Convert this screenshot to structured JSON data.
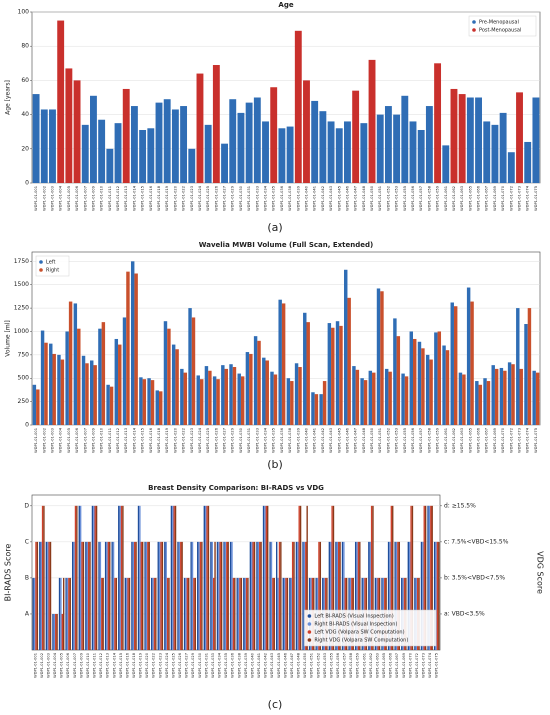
{
  "chart_data": [
    {
      "type": "bar",
      "title": "Age",
      "label": "(a)",
      "ylabel": "Age [years]",
      "categories": [
        "WDP1-01-001",
        "WDP1-01-002",
        "WDP1-01-003",
        "WDP1-01-004",
        "WDP1-01-005",
        "WDP1-01-006",
        "WDP1-01-007",
        "WDP1-01-009",
        "WDP1-01-010",
        "WDP1-01-011",
        "WDP1-01-012",
        "WDP1-01-013",
        "WDP1-01-014",
        "WDP1-01-015",
        "WDP1-01-016",
        "WDP1-01-018",
        "WDP1-01-019",
        "WDP1-01-020",
        "WDP1-01-022",
        "WDP1-01-023",
        "WDP1-01-024",
        "WDP1-01-025",
        "WDP1-01-026",
        "WDP1-01-027",
        "WDP1-01-029",
        "WDP1-01-030",
        "WDP1-01-031",
        "WDP1-01-033",
        "WDP1-01-034",
        "WDP1-01-035",
        "WDP1-01-036",
        "WDP1-01-038",
        "WDP1-01-039",
        "WDP1-01-040",
        "WDP1-01-041",
        "WDP1-01-042",
        "WDP1-01-043",
        "WDP1-01-045",
        "WDP1-01-046",
        "WDP1-01-047",
        "WDP1-01-048",
        "WDP1-01-050",
        "WDP1-01-051",
        "WDP1-01-052",
        "WDP1-01-053",
        "WDP1-01-055",
        "WDP1-01-056",
        "WDP1-01-057",
        "WDP1-01-058",
        "WDP1-01-059",
        "WDP1-01-061",
        "WDP1-01-062",
        "WDP1-01-063",
        "WDP1-01-065",
        "WDP1-01-066",
        "WDP1-01-067",
        "WDP1-01-069",
        "WDP1-01-070",
        "WDP1-01-072",
        "WDP1-01-073",
        "WDP1-01-074",
        "WDP1-01-075"
      ],
      "series": [
        {
          "name": "Pre-Menopausal",
          "color": "#2f6db5",
          "values": [
            52,
            43,
            43,
            null,
            null,
            null,
            34,
            51,
            37,
            20,
            35,
            null,
            45,
            31,
            32,
            47,
            49,
            43,
            45,
            20,
            null,
            34,
            null,
            23,
            49,
            41,
            47,
            50,
            36,
            null,
            32,
            33,
            null,
            null,
            48,
            42,
            36,
            32,
            36,
            null,
            35,
            null,
            40,
            45,
            40,
            51,
            36,
            31,
            45,
            null,
            22,
            null,
            null,
            50,
            50,
            36,
            34,
            41,
            18,
            null,
            24,
            50
          ]
        },
        {
          "name": "Post-Menopausal",
          "color": "#c9302c",
          "values": [
            null,
            null,
            null,
            95,
            67,
            60,
            null,
            null,
            null,
            null,
            null,
            55,
            null,
            null,
            null,
            null,
            null,
            null,
            null,
            null,
            64,
            null,
            69,
            null,
            null,
            null,
            null,
            null,
            null,
            56,
            null,
            null,
            89,
            60,
            null,
            null,
            null,
            null,
            null,
            54,
            null,
            72,
            null,
            null,
            null,
            null,
            null,
            null,
            null,
            70,
            null,
            55,
            52,
            null,
            null,
            null,
            null,
            null,
            null,
            53,
            null,
            null
          ]
        }
      ],
      "ylim": [
        0,
        100
      ],
      "yticks": [
        0,
        20,
        40,
        60,
        80,
        100
      ],
      "grid": true,
      "legend": "upper-right"
    },
    {
      "type": "bar",
      "title": "Wavelia MWBI Volume (Full Scan, Extended)",
      "label": "(b)",
      "ylabel": "Volume [ml]",
      "categories": [
        "WDP1-01-001",
        "WDP1-01-002",
        "WDP1-01-003",
        "WDP1-01-004",
        "WDP1-01-005",
        "WDP1-01-006",
        "WDP1-01-007",
        "WDP1-01-009",
        "WDP1-01-010",
        "WDP1-01-011",
        "WDP1-01-012",
        "WDP1-01-013",
        "WDP1-01-014",
        "WDP1-01-015",
        "WDP1-01-016",
        "WDP1-01-018",
        "WDP1-01-019",
        "WDP1-01-020",
        "WDP1-01-022",
        "WDP1-01-023",
        "WDP1-01-024",
        "WDP1-01-025",
        "WDP1-01-026",
        "WDP1-01-027",
        "WDP1-01-029",
        "WDP1-01-030",
        "WDP1-01-031",
        "WDP1-01-033",
        "WDP1-01-034",
        "WDP1-01-035",
        "WDP1-01-036",
        "WDP1-01-038",
        "WDP1-01-039",
        "WDP1-01-040",
        "WDP1-01-041",
        "WDP1-01-042",
        "WDP1-01-043",
        "WDP1-01-045",
        "WDP1-01-046",
        "WDP1-01-047",
        "WDP1-01-048",
        "WDP1-01-050",
        "WDP1-01-051",
        "WDP1-01-052",
        "WDP1-01-053",
        "WDP1-01-055",
        "WDP1-01-056",
        "WDP1-01-057",
        "WDP1-01-058",
        "WDP1-01-059",
        "WDP1-01-061",
        "WDP1-01-062",
        "WDP1-01-063",
        "WDP1-01-065",
        "WDP1-01-066",
        "WDP1-01-067",
        "WDP1-01-069",
        "WDP1-01-070",
        "WDP1-01-072",
        "WDP1-01-073",
        "WDP1-01-074",
        "WDP1-01-075"
      ],
      "series": [
        {
          "name": "Left",
          "color": "#2f6db5",
          "values": [
            430,
            1010,
            870,
            750,
            1000,
            1300,
            740,
            690,
            1030,
            430,
            920,
            1150,
            1750,
            510,
            500,
            370,
            1110,
            860,
            600,
            1250,
            530,
            630,
            520,
            640,
            650,
            550,
            780,
            950,
            720,
            570,
            1340,
            500,
            660,
            1200,
            350,
            330,
            1090,
            1110,
            1660,
            630,
            500,
            580,
            1460,
            600,
            1140,
            550,
            1000,
            890,
            750,
            990,
            850,
            1310,
            560,
            1470,
            470,
            500,
            640,
            610,
            670,
            1250,
            1080,
            580
          ]
        },
        {
          "name": "Right",
          "color": "#c9502c",
          "values": [
            380,
            880,
            760,
            700,
            1320,
            1030,
            660,
            640,
            1100,
            410,
            860,
            1640,
            1620,
            490,
            480,
            360,
            1030,
            810,
            560,
            1150,
            490,
            580,
            490,
            600,
            620,
            520,
            760,
            900,
            690,
            540,
            1300,
            470,
            620,
            1100,
            330,
            470,
            1040,
            1060,
            1360,
            590,
            480,
            560,
            1430,
            570,
            950,
            520,
            920,
            820,
            700,
            1000,
            800,
            1270,
            540,
            1320,
            430,
            470,
            600,
            580,
            650,
            600,
            1250,
            560
          ]
        }
      ],
      "ylim": [
        0,
        1850
      ],
      "yticks": [
        0,
        250,
        500,
        750,
        {
          "value": 1000,
          "label": "1000"
        },
        {
          "value": 1250,
          "label": "1250"
        },
        {
          "value": 1500,
          "label": "1500"
        },
        {
          "value": 1750,
          "label": "1750"
        }
      ],
      "grid": true,
      "legend": "upper-left"
    },
    {
      "type": "bar",
      "title": "Breast Density Comparison: BI-RADS vs VDG",
      "label": "(c)",
      "ylabel": "BI-RADS Score",
      "y2label": "VDG Score",
      "categories": [
        "WDP1-01-001",
        "WDP1-01-002",
        "WDP1-01-003",
        "WDP1-01-004",
        "WDP1-01-005",
        "WDP1-01-006",
        "WDP1-01-007",
        "WDP1-01-009",
        "WDP1-01-010",
        "WDP1-01-011",
        "WDP1-01-012",
        "WDP1-01-013",
        "WDP1-01-014",
        "WDP1-01-015",
        "WDP1-01-016",
        "WDP1-01-018",
        "WDP1-01-019",
        "WDP1-01-020",
        "WDP1-01-022",
        "WDP1-01-023",
        "WDP1-01-024",
        "WDP1-01-025",
        "WDP1-01-026",
        "WDP1-01-027",
        "WDP1-01-029",
        "WDP1-01-030",
        "WDP1-01-031",
        "WDP1-01-033",
        "WDP1-01-034",
        "WDP1-01-035",
        "WDP1-01-036",
        "WDP1-01-038",
        "WDP1-01-039",
        "WDP1-01-040",
        "WDP1-01-041",
        "WDP1-01-042",
        "WDP1-01-043",
        "WDP1-01-045",
        "WDP1-01-046",
        "WDP1-01-047",
        "WDP1-01-048",
        "WDP1-01-050",
        "WDP1-01-051",
        "WDP1-01-052",
        "WDP1-01-053",
        "WDP1-01-055",
        "WDP1-01-056",
        "WDP1-01-057",
        "WDP1-01-058",
        "WDP1-01-059",
        "WDP1-01-061",
        "WDP1-01-062",
        "WDP1-01-063",
        "WDP1-01-065",
        "WDP1-01-066",
        "WDP1-01-067",
        "WDP1-01-069",
        "WDP1-01-070",
        "WDP1-01-072",
        "WDP1-01-073",
        "WDP1-01-074",
        "WDP1-01-075"
      ],
      "series": [
        {
          "name": "Left BI-RADS (Visual Inspection)",
          "color": "#1f4e9c",
          "values": [
            2,
            3,
            3,
            1,
            2,
            2,
            3,
            4,
            3,
            4,
            3,
            3,
            3,
            4,
            2,
            3,
            4,
            3,
            2,
            3,
            3,
            4,
            3,
            2,
            3,
            3,
            4,
            3,
            3,
            3,
            3,
            2,
            2,
            3,
            3,
            4,
            3,
            3,
            2,
            2,
            3,
            3,
            2,
            2,
            2,
            3,
            3,
            3,
            2,
            3,
            2,
            3,
            2,
            2,
            3,
            3,
            2,
            3,
            2,
            3,
            4,
            3
          ]
        },
        {
          "name": "Right BI-RADS (Visual Inspection)",
          "color": "#6a8fd8",
          "values": [
            2,
            3,
            3,
            1,
            2,
            2,
            3,
            4,
            3,
            4,
            3,
            3,
            3,
            4,
            2,
            3,
            4,
            3,
            2,
            3,
            3,
            4,
            3,
            2,
            3,
            3,
            4,
            3,
            3,
            3,
            3,
            2,
            2,
            3,
            3,
            4,
            3,
            2,
            2,
            2,
            3,
            3,
            2,
            2,
            2,
            3,
            3,
            3,
            2,
            3,
            2,
            3,
            2,
            2,
            3,
            3,
            2,
            3,
            2,
            3,
            4,
            3
          ]
        },
        {
          "name": "Left VDG (Volpara SW Computation)",
          "color": "#d0402a",
          "axis": "y2",
          "values": [
            3,
            4,
            3,
            1,
            1,
            2,
            4,
            3,
            3,
            4,
            2,
            3,
            2,
            4,
            2,
            3,
            3,
            3,
            2,
            3,
            2,
            4,
            3,
            2,
            2,
            3,
            4,
            2,
            3,
            3,
            2,
            2,
            2,
            3,
            3,
            4,
            2,
            3,
            2,
            3,
            4,
            3,
            2,
            3,
            2,
            4,
            3,
            2,
            2,
            3,
            2,
            4,
            2,
            2,
            4,
            3,
            2,
            4,
            2,
            4,
            4,
            3
          ]
        },
        {
          "name": "Right VDG (Volpara SW Computation)",
          "color": "#8b3a1a",
          "axis": "y2",
          "values": [
            3,
            4,
            3,
            1,
            2,
            2,
            4,
            3,
            3,
            4,
            2,
            3,
            2,
            4,
            2,
            3,
            3,
            3,
            2,
            3,
            2,
            4,
            3,
            2,
            2,
            3,
            4,
            3,
            3,
            3,
            2,
            2,
            2,
            3,
            3,
            4,
            2,
            3,
            2,
            3,
            4,
            4,
            2,
            3,
            2,
            4,
            3,
            2,
            2,
            3,
            2,
            4,
            2,
            2,
            4,
            3,
            2,
            4,
            2,
            4,
            4,
            3
          ]
        }
      ],
      "ylim": [
        0,
        4.3
      ],
      "yticks": [
        {
          "value": 1,
          "label": "A"
        },
        {
          "value": 2,
          "label": "B"
        },
        {
          "value": 3,
          "label": "C"
        },
        {
          "value": 4,
          "label": "D"
        }
      ],
      "y2lim": [
        0,
        4.3
      ],
      "y2ticks": [
        {
          "value": 1,
          "label": "a: VBD<3.5%"
        },
        {
          "value": 2,
          "label": "b: 3.5%<VBD<7.5%"
        },
        {
          "value": 3,
          "label": "c: 7.5%<VBD<15.5%"
        },
        {
          "value": 4,
          "label": "d: ≥15.5%"
        }
      ],
      "grid": true,
      "legend": "lower-right"
    }
  ]
}
